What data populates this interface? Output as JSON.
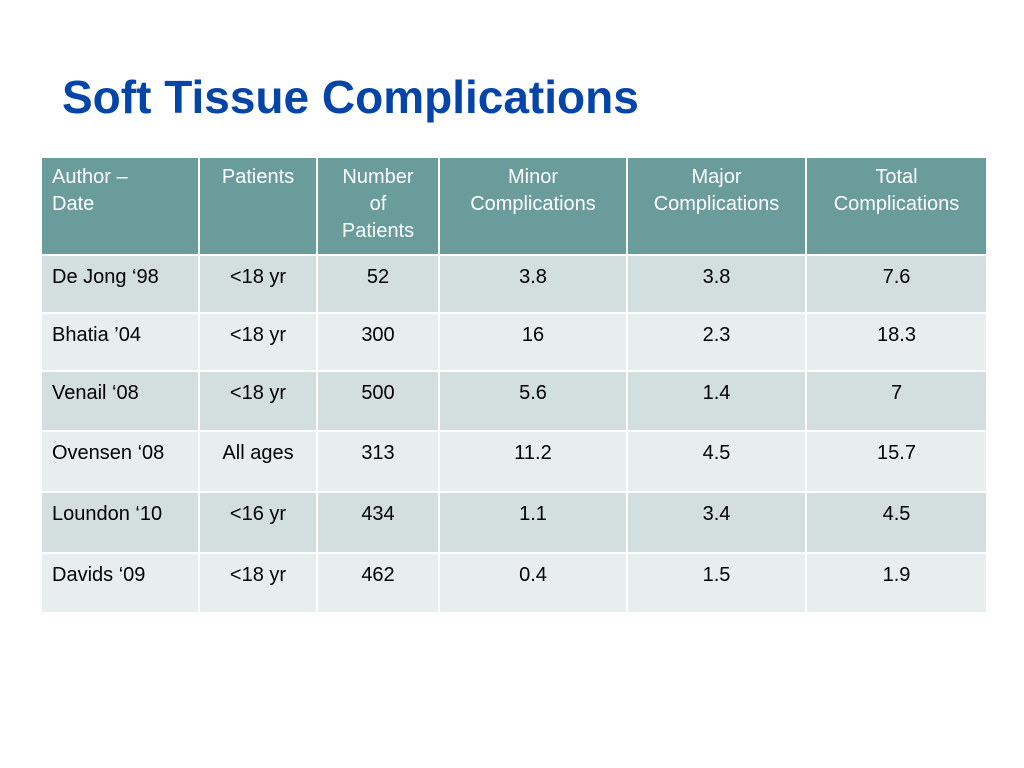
{
  "slide": {
    "title": "Soft Tissue Complications"
  },
  "colors": {
    "title": "#0645A8",
    "header_bg": "#6A9C9C",
    "row_dark": "#D3DEDE",
    "row_light": "#E8EEEE",
    "border": "#FFFFFF"
  },
  "table": {
    "headers": [
      "Author –\nDate",
      "Patients",
      "Number\nof\nPatients",
      "Minor\nComplications",
      "Major\nComplications",
      "Total\nComplications"
    ],
    "rows": [
      [
        "De Jong ‘98",
        "<18 yr",
        "52",
        "3.8",
        "3.8",
        "7.6"
      ],
      [
        "Bhatia ’04",
        "<18 yr",
        "300",
        "16",
        "2.3",
        "18.3"
      ],
      [
        "Venail ‘08",
        "<18 yr",
        "500",
        "5.6",
        "1.4",
        "7"
      ],
      [
        "Ovensen ‘08",
        "All ages",
        "313",
        "11.2",
        "4.5",
        "15.7"
      ],
      [
        "Loundon ‘10",
        "<16 yr",
        "434",
        "1.1",
        "3.4",
        "4.5"
      ],
      [
        "Davids  ‘09",
        "<18 yr",
        "462",
        "0.4",
        "1.5",
        "1.9"
      ]
    ]
  }
}
